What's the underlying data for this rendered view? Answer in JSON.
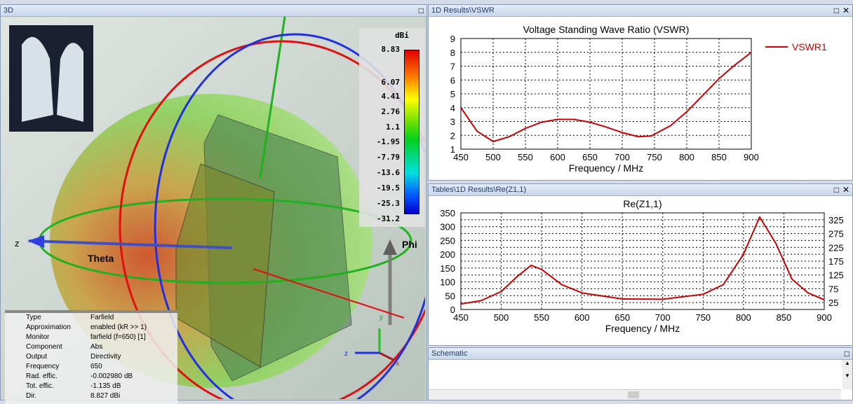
{
  "view3d": {
    "title": "3D",
    "axis_z": "z",
    "axis_theta": "Theta",
    "axis_phi": "Phi",
    "axis_y": "y",
    "axis_x": "x",
    "legend": {
      "unit": "dBi",
      "ticks": [
        "8.83",
        "6.07",
        "4.41",
        "2.76",
        "1.1",
        "-1.95",
        "-7.79",
        "-13.6",
        "-19.5",
        "-25.3",
        "-31.2"
      ]
    },
    "info": [
      [
        "Type",
        "Farfield"
      ],
      [
        "Approximation",
        "enabled (kR >> 1)"
      ],
      [
        "Monitor",
        "farfield (f=650) [1]"
      ],
      [
        "Component",
        "Abs"
      ],
      [
        "Output",
        "Directivity"
      ],
      [
        "Frequency",
        "650"
      ],
      [
        "Rad. effic.",
        "-0.002980 dB"
      ],
      [
        "Tot. effic.",
        "-1.135 dB"
      ],
      [
        "Dir.",
        "8.827 dBi"
      ]
    ]
  },
  "vswr_panel": {
    "title": "1D Results\\VSWR"
  },
  "re_panel": {
    "title": "Tables\\1D Results\\Re(Z1,1)"
  },
  "schematic_panel": {
    "title": "Schematic"
  },
  "chart_data": [
    {
      "type": "line",
      "title": "Voltage Standing Wave Ratio (VSWR)",
      "xlabel": "Frequency / MHz",
      "ylabel": "",
      "xlim": [
        450,
        900
      ],
      "ylim": [
        1,
        9
      ],
      "xticks": [
        450,
        500,
        550,
        600,
        650,
        700,
        750,
        800,
        850,
        900
      ],
      "yticks": [
        1,
        2,
        3,
        4,
        5,
        6,
        7,
        8,
        9
      ],
      "grid": true,
      "legend": "top-right",
      "series": [
        {
          "name": "VSWR1",
          "color": "#cc0000",
          "x": [
            450,
            475,
            500,
            525,
            550,
            575,
            600,
            625,
            650,
            675,
            700,
            725,
            745,
            775,
            800,
            825,
            850,
            875,
            900
          ],
          "y": [
            4.0,
            2.3,
            1.55,
            1.9,
            2.5,
            2.95,
            3.15,
            3.15,
            2.95,
            2.6,
            2.2,
            1.9,
            1.95,
            2.7,
            3.7,
            4.9,
            6.1,
            7.1,
            8.0
          ]
        }
      ]
    },
    {
      "type": "line",
      "title": "Re(Z1,1)",
      "xlabel": "Frequency / MHz",
      "ylabel": "",
      "xlim": [
        450,
        900
      ],
      "ylim": [
        0,
        350
      ],
      "xticks": [
        450,
        500,
        550,
        600,
        650,
        700,
        750,
        800,
        850,
        900
      ],
      "yticks": [
        0,
        25,
        50,
        75,
        100,
        125,
        150,
        175,
        200,
        225,
        250,
        275,
        300,
        325,
        350
      ],
      "grid": true,
      "series": [
        {
          "name": "Re(Z1,1)",
          "color": "#cc0000",
          "x": [
            450,
            475,
            500,
            520,
            537,
            550,
            575,
            600,
            650,
            700,
            750,
            775,
            800,
            820,
            840,
            860,
            880,
            900
          ],
          "y": [
            20,
            32,
            65,
            120,
            160,
            145,
            90,
            60,
            38,
            37,
            55,
            90,
            200,
            335,
            240,
            110,
            60,
            35
          ]
        }
      ]
    }
  ]
}
